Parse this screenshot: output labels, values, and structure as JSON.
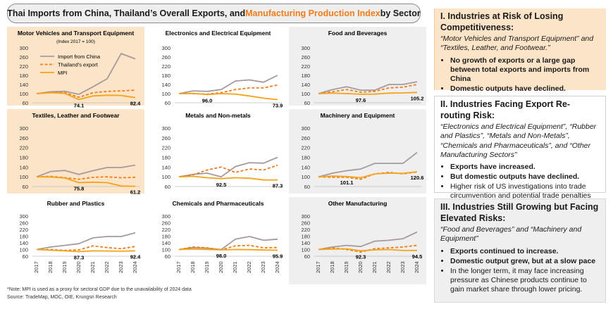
{
  "title": {
    "part1": "Thai Imports from China, Thailand’s Overall Exports, and ",
    "highlight": "Manufacturing Production Index",
    "part2": " by Sector"
  },
  "colors": {
    "import": "#a59a9c",
    "exports": "#f07d1a",
    "mpi": "#f5a31a",
    "orange_bg": "#fce4c8",
    "gray_bg": "#efefef",
    "title_highlight": "#f07d1a"
  },
  "chart_data": [
    {
      "type": "line",
      "title": "Motor Vehicles and Transport Equipment",
      "subtitle": "(Index 2017 = 100)",
      "bg": "orange",
      "x": [
        2017,
        2018,
        2019,
        2020,
        2021,
        2022,
        2023,
        2024
      ],
      "ylim": [
        60,
        300
      ],
      "yticks": [
        60,
        100,
        140,
        180,
        220,
        260,
        300
      ],
      "series": [
        {
          "name": "Import from China",
          "values": [
            100,
            108,
            110,
            97,
            130,
            165,
            275,
            252
          ]
        },
        {
          "name": "Thailand's export",
          "values": [
            100,
            105,
            104,
            84,
            104,
            110,
            112,
            115
          ]
        },
        {
          "name": "MPI",
          "values": [
            100,
            104,
            101,
            74.1,
            90,
            93,
            92,
            82.4
          ]
        }
      ],
      "labels": [
        {
          "text": "74.1",
          "i": 3
        },
        {
          "text": "82.4",
          "i": 7
        }
      ],
      "legend": [
        "Import from China",
        "Thailand's export",
        "MPI"
      ]
    },
    {
      "type": "line",
      "title": "Electronics and Electrical Equipment",
      "bg": "white",
      "x": [
        2017,
        2018,
        2019,
        2020,
        2021,
        2022,
        2023,
        2024
      ],
      "ylim": [
        60,
        300
      ],
      "yticks": [
        60,
        100,
        140,
        180,
        220,
        260,
        300
      ],
      "series": [
        {
          "name": "Import from China",
          "values": [
            100,
            112,
            110,
            118,
            155,
            160,
            150,
            180
          ]
        },
        {
          "name": "Thailand's export",
          "values": [
            100,
            100,
            98,
            104,
            118,
            125,
            125,
            138
          ]
        },
        {
          "name": "MPI",
          "values": [
            100,
            101,
            96.0,
            100,
            98,
            90,
            80,
            73.9
          ]
        }
      ],
      "labels": [
        {
          "text": "96.0",
          "i": 2
        },
        {
          "text": "73.9",
          "i": 7
        }
      ]
    },
    {
      "type": "line",
      "title": "Food and Beverages",
      "bg": "gray",
      "x": [
        2017,
        2018,
        2019,
        2020,
        2021,
        2022,
        2023,
        2024
      ],
      "ylim": [
        60,
        300
      ],
      "yticks": [
        60,
        100,
        140,
        180,
        220,
        260,
        300
      ],
      "series": [
        {
          "name": "Import from China",
          "values": [
            100,
            118,
            130,
            115,
            115,
            140,
            140,
            152
          ]
        },
        {
          "name": "Thailand's export",
          "values": [
            100,
            108,
            118,
            106,
            110,
            125,
            128,
            140
          ]
        },
        {
          "name": "MPI",
          "values": [
            100,
            102,
            100,
            97.6,
            98,
            102,
            103,
            105.2
          ]
        }
      ],
      "labels": [
        {
          "text": "97.6",
          "i": 3
        },
        {
          "text": "105.2",
          "i": 7
        }
      ]
    },
    {
      "type": "line",
      "title": "Textiles, Leather and Footwear",
      "bg": "orange",
      "x": [
        2017,
        2018,
        2019,
        2020,
        2021,
        2022,
        2023,
        2024
      ],
      "ylim": [
        60,
        300
      ],
      "yticks": [
        60,
        100,
        140,
        180,
        220,
        260,
        300
      ],
      "series": [
        {
          "name": "Import from China",
          "values": [
            100,
            122,
            126,
            110,
            125,
            138,
            138,
            148
          ]
        },
        {
          "name": "Thailand's export",
          "values": [
            100,
            102,
            96,
            90,
            98,
            100,
            96,
            98
          ]
        },
        {
          "name": "MPI",
          "values": [
            100,
            99,
            95,
            75.8,
            78,
            76,
            62,
            61.2
          ]
        }
      ],
      "labels": [
        {
          "text": "75.8",
          "i": 3
        },
        {
          "text": "61.2",
          "i": 7
        }
      ]
    },
    {
      "type": "line",
      "title": "Metals and Non-metals",
      "bg": "white",
      "x": [
        2017,
        2018,
        2019,
        2020,
        2021,
        2022,
        2023,
        2024
      ],
      "ylim": [
        60,
        300
      ],
      "yticks": [
        60,
        100,
        140,
        180,
        220,
        260,
        300
      ],
      "series": [
        {
          "name": "Import from China",
          "values": [
            100,
            110,
            115,
            100,
            142,
            158,
            156,
            180
          ]
        },
        {
          "name": "Thailand's export",
          "values": [
            100,
            108,
            128,
            140,
            118,
            132,
            128,
            148
          ]
        },
        {
          "name": "MPI",
          "values": [
            100,
            102,
            96,
            92.5,
            96,
            94,
            87,
            87.3
          ]
        }
      ],
      "labels": [
        {
          "text": "92.5",
          "i": 3
        },
        {
          "text": "87.3",
          "i": 7
        }
      ]
    },
    {
      "type": "line",
      "title": "Machinery and Equipment",
      "bg": "gray",
      "x": [
        2017,
        2018,
        2019,
        2020,
        2021,
        2022,
        2023,
        2024
      ],
      "ylim": [
        60,
        300
      ],
      "yticks": [
        60,
        100,
        140,
        180,
        220,
        260,
        300
      ],
      "series": [
        {
          "name": "Import from China",
          "values": [
            100,
            115,
            125,
            132,
            155,
            155,
            155,
            200
          ]
        },
        {
          "name": "Thailand's export",
          "values": [
            100,
            98,
            98,
            90,
            112,
            118,
            112,
            120
          ]
        },
        {
          "name": "MPI",
          "values": [
            100,
            103,
            101.1,
            96,
            112,
            115,
            114,
            120.6
          ]
        }
      ],
      "labels": [
        {
          "text": "101.1",
          "i": 2
        },
        {
          "text": "120.6",
          "i": 7
        }
      ]
    },
    {
      "type": "line",
      "title": "Rubber and Plastics",
      "bg": "white",
      "x": [
        2017,
        2018,
        2019,
        2020,
        2021,
        2022,
        2023,
        2024
      ],
      "ylim": [
        60,
        300
      ],
      "yticks": [
        60,
        100,
        140,
        180,
        220,
        260,
        300
      ],
      "series": [
        {
          "name": "Import from China",
          "values": [
            100,
            115,
            125,
            135,
            170,
            178,
            178,
            200
          ]
        },
        {
          "name": "Thailand's export",
          "values": [
            100,
            100,
            95,
            98,
            122,
            112,
            105,
            118
          ]
        },
        {
          "name": "MPI",
          "values": [
            100,
            96,
            92,
            87.3,
            92,
            91,
            90,
            92.4
          ]
        }
      ],
      "labels": [
        {
          "text": "87.3",
          "i": 3
        },
        {
          "text": "92.4",
          "i": 7
        }
      ]
    },
    {
      "type": "line",
      "title": "Chemicals and Pharmaceuticals",
      "bg": "white",
      "x": [
        2017,
        2018,
        2019,
        2020,
        2021,
        2022,
        2023,
        2024
      ],
      "ylim": [
        60,
        300
      ],
      "yticks": [
        60,
        100,
        140,
        180,
        220,
        260,
        300
      ],
      "series": [
        {
          "name": "Import from China",
          "values": [
            100,
            112,
            108,
            100,
            162,
            178,
            155,
            162
          ]
        },
        {
          "name": "Thailand's export",
          "values": [
            100,
            115,
            110,
            98,
            122,
            125,
            110,
            112
          ]
        },
        {
          "name": "MPI",
          "values": [
            100,
            103,
            100,
            98.0,
            100,
            99,
            97,
            95.9
          ]
        }
      ],
      "labels": [
        {
          "text": "98.0",
          "i": 3
        },
        {
          "text": "95.9",
          "i": 7
        }
      ]
    },
    {
      "type": "line",
      "title": "Other Manufacturing",
      "bg": "gray",
      "x": [
        2017,
        2018,
        2019,
        2020,
        2021,
        2022,
        2023,
        2024
      ],
      "ylim": [
        60,
        300
      ],
      "yticks": [
        60,
        100,
        140,
        180,
        220,
        260,
        300
      ],
      "series": [
        {
          "name": "Import from China",
          "values": [
            100,
            115,
            125,
            118,
            150,
            155,
            165,
            205
          ]
        },
        {
          "name": "Thailand's export",
          "values": [
            100,
            110,
            100,
            85,
            105,
            110,
            115,
            125
          ]
        },
        {
          "name": "MPI",
          "values": [
            100,
            103,
            104,
            92.3,
            98,
            100,
            94,
            94.5
          ]
        }
      ],
      "labels": [
        {
          "text": "92.3",
          "i": 3
        },
        {
          "text": "94.5",
          "i": 7
        }
      ]
    }
  ],
  "notes": {
    "note": "*Note: MPI is used as a proxy for sectoral GDP due to the unavailability of 2024 data",
    "source": "Source: TradeMap, MOC, OIE, Krungsri Research"
  },
  "boxes": {
    "b1": {
      "heading": "I. Industries at Risk of Losing Competitiveness:",
      "desc": "“Motor Vehicles and Transport Equipment” and “Textiles, Leather, and Footwear.”",
      "bullets": [
        "No growth of exports or a large gap between total exports and imports from China",
        "Domestic outputs have declined."
      ]
    },
    "b2": {
      "heading": "II. Industries Facing Export Re-routing Risk:",
      "desc": "“Electronics and Electrical Equipment”, “Rubber and Plastics”, “Metals and Non-Metals”, “Chemicals and Pharmaceuticals”, and “Other Manufacturing Sectors”",
      "bullets_bold": [
        "Exports have increased.",
        "But domestic outputs have declined."
      ],
      "bullet_plain": "Higher risk of US investigations into trade circumvention and potential trade penalties"
    },
    "b3": {
      "heading": "III. Industries Still Growing but Facing Elevated Risks:",
      "desc": "“Food and Beverages” and “Machinery and Equipment”",
      "bullets_bold": [
        "Exports continued to increase.",
        "Domestic output grew, but at a slow pace"
      ],
      "bullet_plain": "In the longer term, it may face increasing pressure as Chinese products continue to gain market share through lower pricing."
    }
  }
}
